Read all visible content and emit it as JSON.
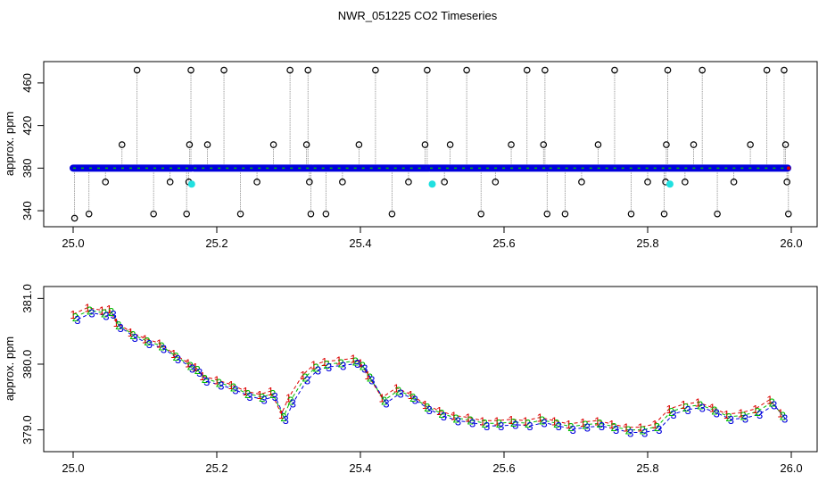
{
  "figure": {
    "title": "NWR_051225  CO2 Timeseries"
  },
  "colors": {
    "series_1": "#dd0000",
    "series_2": "#00bb00",
    "series_3": "#0000dd",
    "outlier_edge": "#000000",
    "cyan_marker": "#20e0e0",
    "spike_line": "#8c8c8c"
  },
  "chart_data": [
    {
      "type": "scatter",
      "name": "top-panel",
      "title": "",
      "xlabel": "",
      "ylabel": "approx. ppm",
      "xlim": [
        25.0,
        26.0
      ],
      "ylim": [
        330,
        475
      ],
      "xticks": [
        "25.0",
        "25.2",
        "25.4",
        "25.6",
        "25.8",
        "26.0"
      ],
      "xtick_values": [
        25.0,
        25.2,
        25.4,
        25.6,
        25.8,
        26.0
      ],
      "yticks": [
        "340",
        "380",
        "420",
        "460"
      ],
      "ytick_values": [
        340,
        380,
        420,
        460
      ],
      "baseline_ppm": 380,
      "baseline_segments": [
        [
          25.0,
          25.165
        ],
        [
          25.168,
          25.333
        ],
        [
          25.335,
          25.495
        ],
        [
          25.497,
          25.661
        ],
        [
          25.663,
          25.827
        ],
        [
          25.829,
          25.995
        ]
      ],
      "outliers": [
        {
          "x": 25.002,
          "y": 333
        },
        {
          "x": 25.022,
          "y": 337
        },
        {
          "x": 25.045,
          "y": 367
        },
        {
          "x": 25.068,
          "y": 402
        },
        {
          "x": 25.089,
          "y": 472
        },
        {
          "x": 25.112,
          "y": 337
        },
        {
          "x": 25.135,
          "y": 367
        },
        {
          "x": 25.158,
          "y": 337
        },
        {
          "x": 25.161,
          "y": 367
        },
        {
          "x": 25.162,
          "y": 402
        },
        {
          "x": 25.164,
          "y": 472
        },
        {
          "x": 25.187,
          "y": 402
        },
        {
          "x": 25.21,
          "y": 472
        },
        {
          "x": 25.233,
          "y": 337
        },
        {
          "x": 25.256,
          "y": 367
        },
        {
          "x": 25.279,
          "y": 402
        },
        {
          "x": 25.302,
          "y": 472
        },
        {
          "x": 25.325,
          "y": 402
        },
        {
          "x": 25.327,
          "y": 472
        },
        {
          "x": 25.329,
          "y": 367
        },
        {
          "x": 25.331,
          "y": 337
        },
        {
          "x": 25.352,
          "y": 337
        },
        {
          "x": 25.375,
          "y": 367
        },
        {
          "x": 25.398,
          "y": 402
        },
        {
          "x": 25.421,
          "y": 472
        },
        {
          "x": 25.444,
          "y": 337
        },
        {
          "x": 25.467,
          "y": 367
        },
        {
          "x": 25.49,
          "y": 402
        },
        {
          "x": 25.493,
          "y": 472
        },
        {
          "x": 25.517,
          "y": 367
        },
        {
          "x": 25.525,
          "y": 402
        },
        {
          "x": 25.548,
          "y": 472
        },
        {
          "x": 25.568,
          "y": 337
        },
        {
          "x": 25.588,
          "y": 367
        },
        {
          "x": 25.61,
          "y": 402
        },
        {
          "x": 25.632,
          "y": 472
        },
        {
          "x": 25.655,
          "y": 402
        },
        {
          "x": 25.657,
          "y": 472
        },
        {
          "x": 25.66,
          "y": 337
        },
        {
          "x": 25.685,
          "y": 337
        },
        {
          "x": 25.708,
          "y": 367
        },
        {
          "x": 25.731,
          "y": 402
        },
        {
          "x": 25.754,
          "y": 472
        },
        {
          "x": 25.777,
          "y": 337
        },
        {
          "x": 25.8,
          "y": 367
        },
        {
          "x": 25.823,
          "y": 337
        },
        {
          "x": 25.825,
          "y": 367
        },
        {
          "x": 25.826,
          "y": 402
        },
        {
          "x": 25.828,
          "y": 472
        },
        {
          "x": 25.852,
          "y": 367
        },
        {
          "x": 25.864,
          "y": 402
        },
        {
          "x": 25.876,
          "y": 472
        },
        {
          "x": 25.897,
          "y": 337
        },
        {
          "x": 25.92,
          "y": 367
        },
        {
          "x": 25.943,
          "y": 402
        },
        {
          "x": 25.966,
          "y": 472
        },
        {
          "x": 25.99,
          "y": 472
        },
        {
          "x": 25.992,
          "y": 402
        },
        {
          "x": 25.994,
          "y": 367
        },
        {
          "x": 25.996,
          "y": 337
        }
      ],
      "cyan_points": [
        {
          "x": 25.165,
          "y": 365
        },
        {
          "x": 25.5,
          "y": 365
        },
        {
          "x": 25.831,
          "y": 365
        }
      ]
    },
    {
      "type": "scatter",
      "name": "bottom-panel",
      "title": "",
      "xlabel": "",
      "ylabel": "approx. ppm",
      "xlim": [
        25.0,
        26.0
      ],
      "ylim": [
        378.75,
        381.1
      ],
      "xticks": [
        "25.0",
        "25.2",
        "25.4",
        "25.6",
        "25.8",
        "26.0"
      ],
      "xtick_values": [
        25.0,
        25.2,
        25.4,
        25.6,
        25.8,
        26.0
      ],
      "yticks": [
        "379.0",
        "380.0",
        "381.0"
      ],
      "ytick_values": [
        379.0,
        380.0,
        381.0
      ],
      "x": [
        25.0,
        25.02,
        25.04,
        25.05,
        25.06,
        25.08,
        25.1,
        25.12,
        25.14,
        25.16,
        25.17,
        25.18,
        25.2,
        25.22,
        25.24,
        25.26,
        25.275,
        25.29,
        25.3,
        25.32,
        25.335,
        25.35,
        25.37,
        25.39,
        25.4,
        25.41,
        25.43,
        25.45,
        25.47,
        25.49,
        25.51,
        25.53,
        25.55,
        25.57,
        25.59,
        25.61,
        25.63,
        25.65,
        25.67,
        25.69,
        25.71,
        25.73,
        25.75,
        25.77,
        25.79,
        25.81,
        25.83,
        25.85,
        25.87,
        25.89,
        25.91,
        25.93,
        25.95,
        25.97,
        25.985
      ],
      "series": [
        {
          "name": "1",
          "offset": 0.04,
          "values": [
            380.72,
            380.82,
            380.78,
            380.8,
            380.6,
            380.45,
            380.35,
            380.28,
            380.12,
            379.98,
            379.92,
            379.78,
            379.72,
            379.65,
            379.55,
            379.5,
            379.55,
            379.2,
            379.45,
            379.8,
            379.95,
            380.0,
            380.02,
            380.05,
            379.98,
            379.8,
            379.45,
            379.6,
            379.5,
            379.35,
            379.25,
            379.18,
            379.15,
            379.1,
            379.1,
            379.12,
            379.1,
            379.15,
            379.1,
            379.05,
            379.08,
            379.1,
            379.05,
            379.0,
            379.0,
            379.05,
            379.28,
            379.35,
            379.38,
            379.3,
            379.2,
            379.22,
            379.28,
            379.42,
            379.22
          ]
        },
        {
          "name": "2",
          "offset": 0.0,
          "values": [
            380.72,
            380.82,
            380.78,
            380.8,
            380.6,
            380.45,
            380.35,
            380.28,
            380.12,
            379.98,
            379.92,
            379.78,
            379.72,
            379.65,
            379.55,
            379.5,
            379.55,
            379.2,
            379.45,
            379.8,
            379.95,
            380.0,
            380.02,
            380.05,
            379.98,
            379.8,
            379.45,
            379.6,
            379.5,
            379.35,
            379.25,
            379.18,
            379.15,
            379.1,
            379.1,
            379.12,
            379.1,
            379.15,
            379.1,
            379.05,
            379.08,
            379.1,
            379.05,
            379.0,
            379.0,
            379.05,
            379.28,
            379.35,
            379.38,
            379.3,
            379.2,
            379.22,
            379.28,
            379.42,
            379.22
          ]
        },
        {
          "name": "3",
          "offset": -0.04,
          "values": [
            380.72,
            380.82,
            380.78,
            380.8,
            380.6,
            380.45,
            380.35,
            380.28,
            380.12,
            379.98,
            379.92,
            379.78,
            379.72,
            379.65,
            379.55,
            379.5,
            379.55,
            379.2,
            379.45,
            379.8,
            379.95,
            380.0,
            380.02,
            380.05,
            379.98,
            379.8,
            379.45,
            379.6,
            379.5,
            379.35,
            379.25,
            379.18,
            379.15,
            379.1,
            379.1,
            379.12,
            379.1,
            379.15,
            379.1,
            379.05,
            379.08,
            379.1,
            379.05,
            379.0,
            379.0,
            379.05,
            379.28,
            379.35,
            379.38,
            379.3,
            379.2,
            379.22,
            379.28,
            379.42,
            379.22
          ]
        }
      ]
    }
  ]
}
